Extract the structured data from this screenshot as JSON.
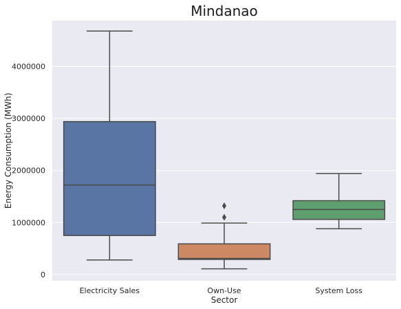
{
  "chart_data": {
    "type": "box",
    "title": "Mindanao",
    "xlabel": "Sector",
    "ylabel": "Energy Consumption (MWh)",
    "ylim": [
      -120000,
      4880000
    ],
    "yticks": [
      0,
      1000000,
      2000000,
      3000000,
      4000000
    ],
    "ytick_labels": [
      "0",
      "1000000",
      "2000000",
      "3000000",
      "4000000"
    ],
    "grid": true,
    "background": "#EAEAF2",
    "categories": [
      "Electricity Sales",
      "Own-Use",
      "System Loss"
    ],
    "boxes": [
      {
        "category": "Electricity Sales",
        "color": "#5975A4",
        "whisker_low": 280000,
        "q1": 750000,
        "median": 1720000,
        "q3": 2940000,
        "whisker_high": 4680000,
        "outliers": []
      },
      {
        "category": "Own-Use",
        "color": "#CC8963",
        "whisker_low": 110000,
        "q1": 290000,
        "median": 310000,
        "q3": 590000,
        "whisker_high": 990000,
        "outliers": [
          1100000,
          1320000
        ]
      },
      {
        "category": "System Loss",
        "color": "#5F9E6E",
        "whisker_low": 880000,
        "q1": 1060000,
        "median": 1250000,
        "q3": 1420000,
        "whisker_high": 1940000,
        "outliers": []
      }
    ]
  }
}
